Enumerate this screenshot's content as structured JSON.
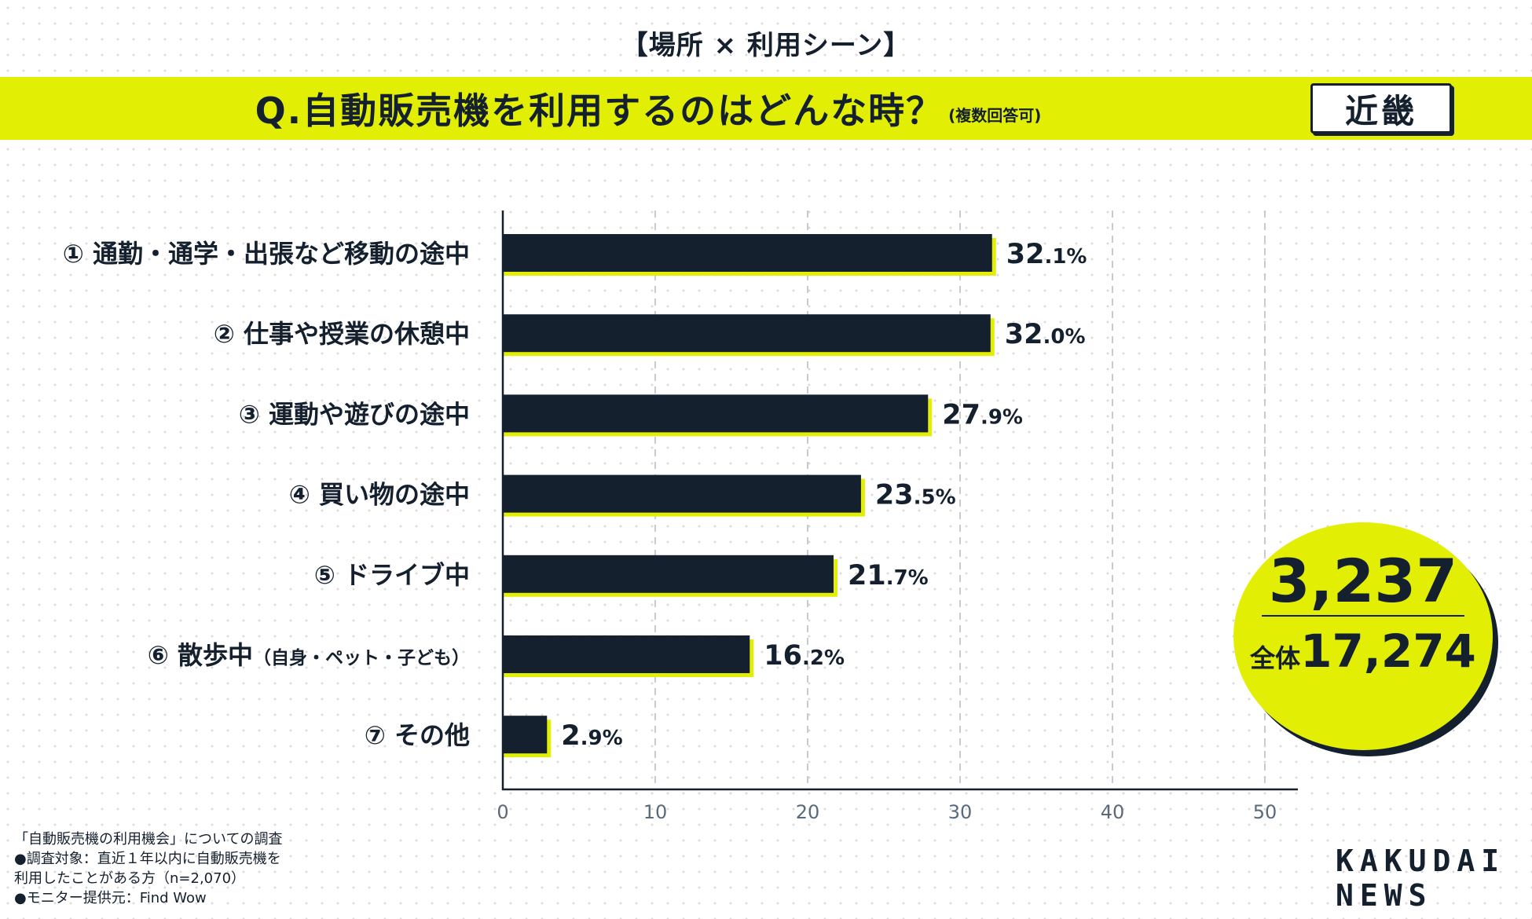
{
  "header": {
    "subtitle": "【場所 × 利用シーン】",
    "question": "Q.自動販売機を利用するのはどんな時？",
    "question_note": "(複数回答可)",
    "region": "近畿"
  },
  "chart_data": {
    "type": "bar",
    "orientation": "horizontal",
    "categories": [
      "① 通勤・通学・出張など移動の途中",
      "② 仕事や授業の休憩中",
      "③ 運動や遊びの途中",
      "④ 買い物の途中",
      "⑤ ドライブ中",
      "⑥ 散歩中",
      "⑦ その他"
    ],
    "category_notes": [
      "",
      "",
      "",
      "",
      "",
      "（自身・ペット・子ども）",
      ""
    ],
    "values": [
      32.1,
      32.0,
      27.9,
      23.5,
      21.7,
      16.2,
      2.9
    ],
    "value_suffix": "%",
    "xlim": [
      0,
      50
    ],
    "xticks": [
      0,
      10,
      20,
      30,
      40,
      50
    ],
    "grid": "vertical dashed",
    "bar_color": "#14202e",
    "accent_color": "#e2ef05"
  },
  "sample": {
    "region_count": "3,237",
    "total_label": "全体",
    "total_count": "17,274"
  },
  "footnotes": [
    "「自動販売機の利用機会」についての調査",
    "●調査対象：直近１年以内に自動販売機を",
    "利用したことがある方（n=2,070）",
    "●モニター提供元：Find Wow"
  ],
  "logo": {
    "line1": "KAKUDAI",
    "line2": "NEWS"
  }
}
